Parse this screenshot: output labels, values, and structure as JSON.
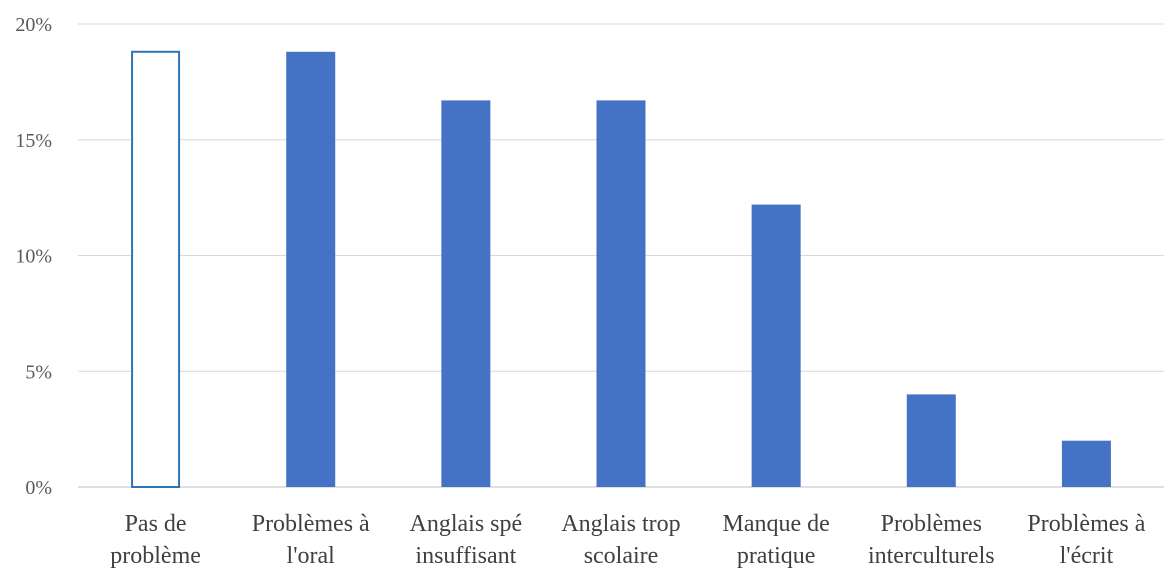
{
  "chart_data": {
    "type": "bar",
    "title": "",
    "xlabel": "",
    "ylabel": "",
    "categories": [
      [
        "Pas de",
        "problème"
      ],
      [
        "Problèmes à",
        "l'oral"
      ],
      [
        "Anglais spé",
        "insuffisant"
      ],
      [
        "Anglais trop",
        "scolaire"
      ],
      [
        "Manque de",
        "pratique"
      ],
      [
        "Problèmes",
        "interculturels"
      ],
      [
        "Problèmes à",
        "l'écrit"
      ]
    ],
    "values": [
      18.8,
      18.8,
      16.7,
      16.7,
      12.2,
      4.0,
      2.0
    ],
    "ylim": [
      0,
      20
    ],
    "yticks": [
      0,
      5,
      10,
      15,
      20
    ],
    "ytick_labels": [
      "0%",
      "5%",
      "10%",
      "15%",
      "20%"
    ],
    "grid": true,
    "legend": "none",
    "bar_styles": [
      "outline",
      "filled",
      "filled",
      "filled",
      "filled",
      "filled",
      "filled"
    ],
    "colors": {
      "bar_fill": "#4472c4",
      "outline_stroke": "#2e75b6",
      "outline_fill": "#ffffff"
    }
  }
}
